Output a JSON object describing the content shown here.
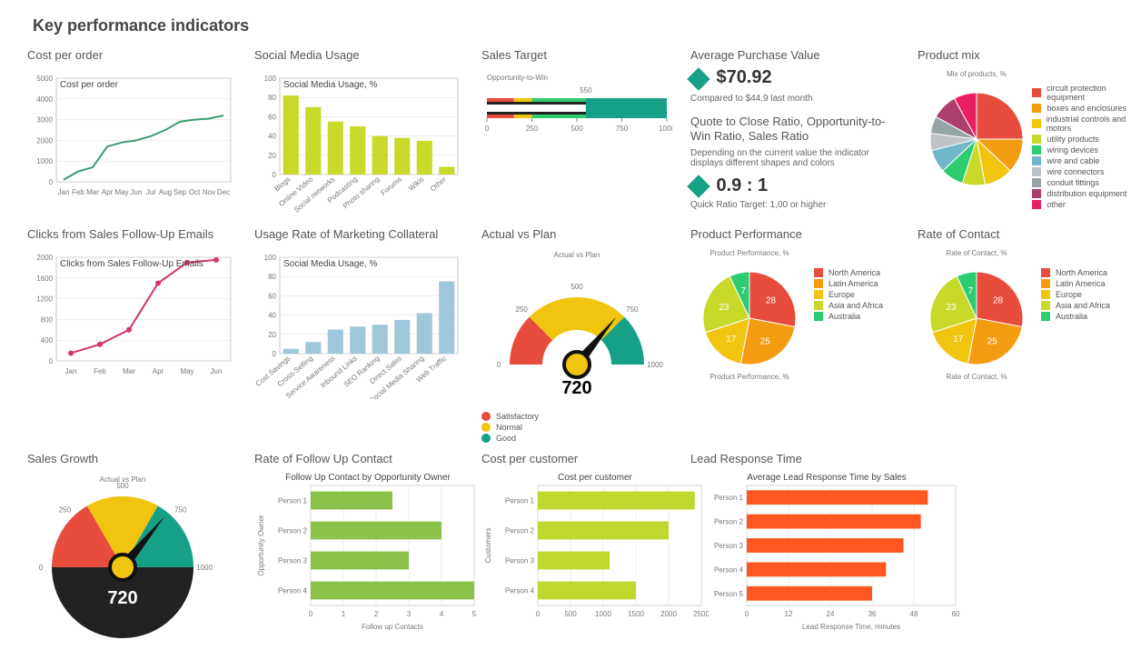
{
  "page_title": "Key performance indicators",
  "cost_per_order": {
    "type": "line",
    "title": "Cost per order",
    "inset_title": "Cost per order",
    "x_labels": [
      "Jan",
      "Feb",
      "Mar",
      "Apr",
      "May",
      "Jun",
      "Jul",
      "Aug",
      "Sep",
      "Oct",
      "Nov",
      "Dec"
    ],
    "values": [
      100,
      500,
      700,
      1700,
      1900,
      2000,
      2200,
      2500,
      2900,
      3000,
      3050,
      3200
    ],
    "ylim": [
      0,
      5000
    ],
    "ytick_step": 1000,
    "line_color": "#3d9970",
    "line_width": 2,
    "grid_color": "#dddddd",
    "bg": "#ffffff"
  },
  "clicks_emails": {
    "type": "line",
    "title": "Clicks from Sales Follow-Up Emails",
    "inset_title": "Clicks from Sales Follow-Up Emails",
    "x_labels": [
      "Jan",
      "Feb",
      "Mar",
      "Apr",
      "May",
      "Jun"
    ],
    "values": [
      150,
      320,
      600,
      1500,
      1900,
      1950
    ],
    "ylim": [
      0,
      2000
    ],
    "ytick_step": 400,
    "line_color": "#d6336c",
    "marker_color": "#d6336c",
    "line_width": 2,
    "grid_color": "#dddddd"
  },
  "social_media": {
    "type": "bar",
    "title": "Social Media Usage",
    "inset_title": "Social Media Usage, %",
    "categories": [
      "Blogs",
      "Online Video",
      "Social networks",
      "Podcasting",
      "Photo sharing",
      "Forums",
      "Wikis",
      "Other"
    ],
    "values": [
      82,
      70,
      55,
      50,
      40,
      38,
      35,
      8
    ],
    "ylim": [
      0,
      100
    ],
    "ytick_step": 20,
    "bar_color": "#c9d92a",
    "grid_color": "#dddddd"
  },
  "marketing_collateral": {
    "type": "bar",
    "title": "Usage Rate of Marketing Collateral",
    "inset_title": "Social Media Usage, %",
    "categories": [
      "Cost Savings",
      "Cross-Selling",
      "Service Awareness",
      "Inbound Links",
      "SEO Ranking",
      "Direct Sales",
      "Social Media Sharing",
      "Web Traffic"
    ],
    "values": [
      5,
      12,
      25,
      28,
      30,
      35,
      42,
      75
    ],
    "ylim": [
      0,
      100
    ],
    "ytick_step": 20,
    "bar_color": "#9fc7da",
    "grid_color": "#dddddd"
  },
  "sales_target": {
    "type": "bullet",
    "title": "Sales Target",
    "subtitle": "Opportunity-to-Win",
    "ranges": [
      {
        "to": 150,
        "color": "#e74c3c"
      },
      {
        "to": 250,
        "color": "#f1c40f"
      },
      {
        "to": 550,
        "color": "#2ecc71"
      },
      {
        "to": 1000,
        "color": "#16a085"
      }
    ],
    "measure": 550,
    "measure_color": "#ffffff",
    "measure_bg": "#222222",
    "label_above": "550",
    "xlim": [
      0,
      1000
    ],
    "xtick_step": 250
  },
  "actual_vs_plan": {
    "type": "gauge",
    "title": "Actual vs Plan",
    "subtitle": "Actual vs Plan",
    "value": 720,
    "value_label": "720",
    "ticks": {
      "min": 0,
      "max": 1000,
      "labels": [
        "0",
        "250",
        "500",
        "750",
        "1000"
      ]
    },
    "zones": [
      {
        "from": 0,
        "to": 250,
        "color": "#e74c3c"
      },
      {
        "from": 250,
        "to": 500,
        "color": "#f1c40f"
      },
      {
        "from": 500,
        "to": 750,
        "color": "#f1c40f"
      },
      {
        "from": 750,
        "to": 1000,
        "color": "#16a085"
      }
    ],
    "needle_color": "#111111",
    "hub_fill": "#f1c40f",
    "hub_stroke": "#111111",
    "legend": [
      {
        "label": "Satisfactory",
        "color": "#e74c3c"
      },
      {
        "label": "Normal",
        "color": "#f1c40f"
      },
      {
        "label": "Good",
        "color": "#16a085"
      }
    ]
  },
  "avg_purchase": {
    "title": "Average Purchase Value",
    "value": "$70.92",
    "caption": "Compared to $44,9 last month",
    "diamond_color": "#16a085"
  },
  "quote_ratio": {
    "title": "Quote to Close Ratio, Opportunity-to-Win Ratio, Sales Ratio",
    "desc": "Depending on the current value the indicator displays different shapes and colors",
    "value": "0.9 : 1",
    "caption": "Quick Ratio Target: 1,00 or higher",
    "diamond_color": "#16a085"
  },
  "product_mix": {
    "type": "pie",
    "title": "Product mix",
    "subtitle": "Mix of products, %",
    "slices": [
      {
        "label": "circuit protection equipment",
        "value": 25,
        "color": "#e74c3c"
      },
      {
        "label": "boxes and enclosures",
        "value": 12,
        "color": "#f39c12"
      },
      {
        "label": "industrial controls and motors",
        "value": 10,
        "color": "#f1c40f"
      },
      {
        "label": "utility products",
        "value": 8,
        "color": "#c9d92a"
      },
      {
        "label": "wiring devices",
        "value": 8,
        "color": "#2ecc71"
      },
      {
        "label": "wire and cable",
        "value": 8,
        "color": "#6fb7c9"
      },
      {
        "label": "wire connectors",
        "value": 6,
        "color": "#bdc3c7"
      },
      {
        "label": "conduit fittings",
        "value": 6,
        "color": "#95a5a6"
      },
      {
        "label": "distribution equipment",
        "value": 9,
        "color": "#ad3d6a"
      },
      {
        "label": "other",
        "value": 8,
        "color": "#e91e63"
      }
    ]
  },
  "product_performance": {
    "type": "pie",
    "title": "Product Performance",
    "subtitle": "Product Performance, %",
    "slices": [
      {
        "label": "North America",
        "value": 28,
        "color": "#e74c3c"
      },
      {
        "label": "Latin America",
        "value": 25,
        "color": "#f39c12"
      },
      {
        "label": "Europe",
        "value": 17,
        "color": "#f1c40f"
      },
      {
        "label": "Asia and Africa",
        "value": 23,
        "color": "#c9d92a"
      },
      {
        "label": "Australia",
        "value": 7,
        "color": "#2ecc71"
      }
    ],
    "show_values": true
  },
  "rate_of_contact": {
    "type": "pie",
    "title": "Rate of Contact",
    "subtitle": "Rate of Contact, %",
    "slices": [
      {
        "label": "North America",
        "value": 28,
        "color": "#e74c3c"
      },
      {
        "label": "Latin America",
        "value": 25,
        "color": "#f39c12"
      },
      {
        "label": "Europe",
        "value": 17,
        "color": "#f1c40f"
      },
      {
        "label": "Asia and Africa",
        "value": 23,
        "color": "#c9d92a"
      },
      {
        "label": "Australia",
        "value": 7,
        "color": "#2ecc71"
      }
    ],
    "show_values": true
  },
  "sales_growth": {
    "type": "gauge",
    "title": "Sales Growth",
    "subtitle": "Actual vs Plan",
    "value": 720,
    "value_label": "720",
    "ticks": {
      "min": 0,
      "max": 1000,
      "labels": [
        "0",
        "250",
        "500",
        "750",
        "1000"
      ]
    },
    "zones": [
      {
        "from": 0,
        "to": 333,
        "color": "#e74c3c"
      },
      {
        "from": 333,
        "to": 666,
        "color": "#f1c40f"
      },
      {
        "from": 666,
        "to": 1000,
        "color": "#16a085"
      }
    ],
    "full_circle_bottom_color": "#222222",
    "needle_color": "#111111",
    "hub_fill": "#f1c40f",
    "hub_stroke": "#111111",
    "value_text_color": "#ffffff"
  },
  "follow_up": {
    "type": "hbar",
    "title": "Rate of Follow Up Contact",
    "chart_title": "Follow Up Contact by Opportunity Owner",
    "y_axis_label": "Opportunity Owner",
    "x_axis_label": "Follow up Contacts",
    "categories": [
      "Person 1",
      "Person 2",
      "Person 3",
      "Person 4"
    ],
    "values": [
      2.5,
      4.0,
      3.0,
      5.0
    ],
    "xlim": [
      0,
      5
    ],
    "xtick_step": 1,
    "bar_color": "#8bc34a",
    "grid_color": "#dddddd"
  },
  "cost_per_customer": {
    "type": "hbar",
    "title": "Cost per customer",
    "chart_title": "Cost per customer",
    "y_axis_label": "Customers",
    "x_axis_label": "",
    "categories": [
      "Person 1",
      "Person 2",
      "Person 3",
      "Person 4"
    ],
    "values": [
      2400,
      2000,
      1100,
      1500
    ],
    "xlim": [
      0,
      2500
    ],
    "xtick_step": 500,
    "bar_color": "#c0d72e",
    "grid_color": "#dddddd"
  },
  "lead_response": {
    "type": "hbar",
    "title": "Lead Response Time",
    "chart_title": "Average Lead Response Time by Sales",
    "y_axis_label": "",
    "x_axis_label": "Lead Response Time, minutes",
    "categories": [
      "Person 1",
      "Person 2",
      "Person 3",
      "Person 4",
      "Person 5"
    ],
    "values": [
      52,
      50,
      45,
      40,
      36
    ],
    "xlim": [
      0,
      60
    ],
    "xtick_step": 12,
    "bar_color": "#ff5722",
    "grid_color": "#dddddd"
  }
}
